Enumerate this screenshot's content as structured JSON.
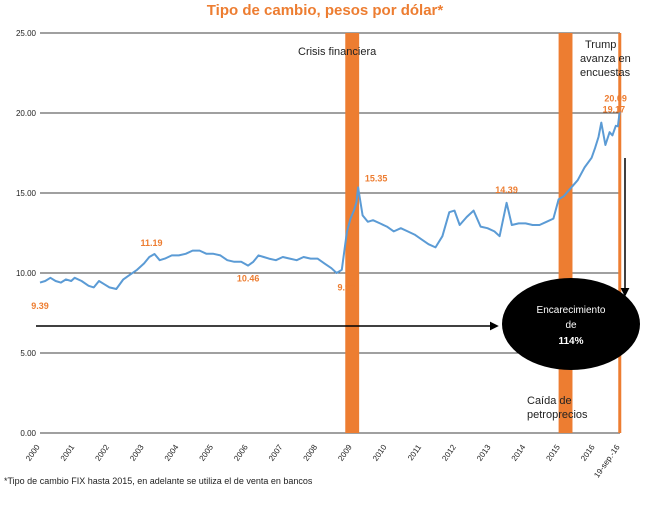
{
  "chart_data": {
    "type": "line",
    "title": "Tipo de cambio, pesos por dólar*",
    "footnote": "*Tipo de cambio FIX hasta 2015, en adelante se utiliza el de venta en bancos",
    "ylim": [
      0,
      25
    ],
    "y_ticks": [
      "0.00",
      "5.00",
      "10.00",
      "15.00",
      "20.00",
      "25.00"
    ],
    "x_ticks": [
      "2000",
      "2001",
      "2002",
      "2003",
      "2004",
      "2005",
      "2006",
      "2007",
      "2008",
      "2009",
      "2010",
      "2011",
      "2012",
      "2013",
      "2014",
      "2015",
      "2016",
      "19-sep.-16"
    ],
    "grid": true,
    "colors": {
      "line": "#5b9bd5",
      "band": "#ed7d31",
      "label": "#ed7d31",
      "grid": "#000000"
    },
    "series": [
      {
        "values": [
          [
            2000.0,
            9.4
          ],
          [
            2000.15,
            9.5
          ],
          [
            2000.3,
            9.7
          ],
          [
            2000.45,
            9.5
          ],
          [
            2000.6,
            9.4
          ],
          [
            2000.75,
            9.6
          ],
          [
            2000.9,
            9.5
          ],
          [
            2001.0,
            9.7
          ],
          [
            2001.2,
            9.5
          ],
          [
            2001.4,
            9.2
          ],
          [
            2001.55,
            9.1
          ],
          [
            2001.7,
            9.5
          ],
          [
            2001.85,
            9.3
          ],
          [
            2002.0,
            9.1
          ],
          [
            2002.2,
            9.0
          ],
          [
            2002.4,
            9.6
          ],
          [
            2002.6,
            9.9
          ],
          [
            2002.8,
            10.2
          ],
          [
            2003.0,
            10.6
          ],
          [
            2003.15,
            11.0
          ],
          [
            2003.3,
            11.19
          ],
          [
            2003.45,
            10.8
          ],
          [
            2003.6,
            10.9
          ],
          [
            2003.8,
            11.1
          ],
          [
            2004.0,
            11.1
          ],
          [
            2004.2,
            11.2
          ],
          [
            2004.4,
            11.4
          ],
          [
            2004.6,
            11.4
          ],
          [
            2004.8,
            11.2
          ],
          [
            2005.0,
            11.2
          ],
          [
            2005.2,
            11.1
          ],
          [
            2005.4,
            10.8
          ],
          [
            2005.6,
            10.7
          ],
          [
            2005.8,
            10.7
          ],
          [
            2006.0,
            10.46
          ],
          [
            2006.15,
            10.7
          ],
          [
            2006.3,
            11.1
          ],
          [
            2006.45,
            11.0
          ],
          [
            2006.6,
            10.9
          ],
          [
            2006.8,
            10.8
          ],
          [
            2007.0,
            11.0
          ],
          [
            2007.2,
            10.9
          ],
          [
            2007.4,
            10.8
          ],
          [
            2007.6,
            11.0
          ],
          [
            2007.8,
            10.9
          ],
          [
            2008.0,
            10.9
          ],
          [
            2008.2,
            10.6
          ],
          [
            2008.4,
            10.3
          ],
          [
            2008.55,
            10.0
          ],
          [
            2008.7,
            10.2
          ],
          [
            2008.78,
            11.5
          ],
          [
            2008.85,
            12.6
          ],
          [
            2008.95,
            13.4
          ],
          [
            2009.05,
            13.9
          ],
          [
            2009.12,
            14.4
          ],
          [
            2009.17,
            15.35
          ],
          [
            2009.3,
            13.6
          ],
          [
            2009.45,
            13.2
          ],
          [
            2009.6,
            13.3
          ],
          [
            2009.8,
            13.1
          ],
          [
            2010.0,
            12.9
          ],
          [
            2010.2,
            12.6
          ],
          [
            2010.4,
            12.8
          ],
          [
            2010.6,
            12.6
          ],
          [
            2010.8,
            12.4
          ],
          [
            2011.0,
            12.1
          ],
          [
            2011.2,
            11.8
          ],
          [
            2011.4,
            11.6
          ],
          [
            2011.6,
            12.3
          ],
          [
            2011.8,
            13.8
          ],
          [
            2011.95,
            13.9
          ],
          [
            2012.1,
            13.0
          ],
          [
            2012.3,
            13.5
          ],
          [
            2012.5,
            13.9
          ],
          [
            2012.7,
            12.9
          ],
          [
            2012.9,
            12.8
          ],
          [
            2013.1,
            12.6
          ],
          [
            2013.25,
            12.3
          ],
          [
            2013.45,
            14.39
          ],
          [
            2013.6,
            13.0
          ],
          [
            2013.8,
            13.1
          ],
          [
            2014.0,
            13.1
          ],
          [
            2014.2,
            13.0
          ],
          [
            2014.4,
            13.0
          ],
          [
            2014.6,
            13.2
          ],
          [
            2014.8,
            13.4
          ],
          [
            2014.95,
            14.6
          ],
          [
            2015.1,
            14.8
          ],
          [
            2015.3,
            15.3
          ],
          [
            2015.5,
            15.8
          ],
          [
            2015.7,
            16.6
          ],
          [
            2015.9,
            17.2
          ],
          [
            2016.0,
            17.8
          ],
          [
            2016.1,
            18.5
          ],
          [
            2016.18,
            19.4
          ],
          [
            2016.3,
            18.0
          ],
          [
            2016.42,
            18.8
          ],
          [
            2016.5,
            18.6
          ],
          [
            2016.6,
            19.2
          ],
          [
            2016.66,
            19.17
          ],
          [
            2016.71,
            20.09
          ]
        ]
      }
    ],
    "bands": [
      {
        "label": "Crisis financiera",
        "x_start": 2008.8,
        "x_end": 2009.2
      },
      {
        "label": "Caída de petroprecios",
        "x_start": 2014.95,
        "x_end": 2015.35
      },
      {
        "label": "Trump avanza en encuestas",
        "x_start": 2016.67,
        "x_end": 2016.74
      }
    ],
    "data_labels": [
      {
        "text": "9.39",
        "x": 2000.0,
        "y": 9.39
      },
      {
        "text": "11.19",
        "x": 2003.3,
        "y": 11.19
      },
      {
        "text": "10.46",
        "x": 2006.0,
        "y": 10.46
      },
      {
        "text": "9.92",
        "x": 2008.6,
        "y": 9.92
      },
      {
        "text": "15.35",
        "x": 2009.17,
        "y": 15.35
      },
      {
        "text": "14.39",
        "x": 2013.45,
        "y": 14.39
      },
      {
        "text": "19.17",
        "x": 2016.66,
        "y": 19.17
      },
      {
        "text": "20.09",
        "x": 2016.71,
        "y": 20.09
      }
    ],
    "annotations": {
      "crisis": "Crisis financiera",
      "trump_line1": "Trump",
      "trump_line2": "avanza en",
      "trump_line3": "encuestas",
      "petro_line1": "Caída de",
      "petro_line2": "petroprecios",
      "ellipse_line1": "Encarecimiento",
      "ellipse_line2": "de",
      "ellipse_line3": "114%"
    }
  }
}
